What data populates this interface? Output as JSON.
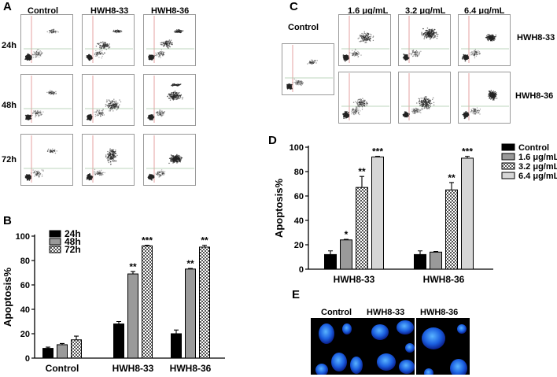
{
  "panels": {
    "A": {
      "label": "A",
      "columns": [
        "Control",
        "HWH8-33",
        "HWH8-36"
      ],
      "rows": [
        "24h",
        "48h",
        "72h"
      ]
    },
    "B": {
      "label": "B"
    },
    "C": {
      "label": "C",
      "control_label": "Control",
      "columns": [
        "1.6 μg/mL",
        "3.2 μg/mL",
        "6.4 μg/mL"
      ],
      "rows": [
        "HWH8-33",
        "HWH8-36"
      ]
    },
    "D": {
      "label": "D"
    },
    "E": {
      "label": "E",
      "columns": [
        "Control",
        "HWH8-33",
        "HWH8-36"
      ]
    }
  },
  "chart_data": [
    {
      "id": "B",
      "type": "bar",
      "ylabel": "Apoptosis%",
      "ylim": [
        0,
        100
      ],
      "yticks": [
        0,
        20,
        40,
        60,
        80,
        100
      ],
      "categories": [
        "Control",
        "HWH8-33",
        "HWH8-36"
      ],
      "legend_position": "top-left",
      "series": [
        {
          "name": "24h",
          "values": [
            8,
            28,
            20
          ],
          "errors": [
            1,
            2,
            3
          ],
          "significance": [
            "",
            "",
            ""
          ]
        },
        {
          "name": "48h",
          "values": [
            11,
            69,
            73
          ],
          "errors": [
            1,
            2,
            0.5
          ],
          "significance": [
            "",
            "**",
            "**"
          ]
        },
        {
          "name": "72h",
          "values": [
            15,
            92,
            91
          ],
          "errors": [
            3,
            0.5,
            1.5
          ],
          "significance": [
            "",
            "***",
            "**"
          ]
        }
      ]
    },
    {
      "id": "D",
      "type": "bar",
      "ylabel": "Apoptosis%",
      "ylim": [
        0,
        100
      ],
      "yticks": [
        0,
        20,
        40,
        60,
        80,
        100
      ],
      "categories": [
        "HWH8-33",
        "HWH8-36"
      ],
      "legend_position": "right",
      "series": [
        {
          "name": "Control",
          "values": [
            12,
            12
          ],
          "errors": [
            3,
            3
          ],
          "significance": [
            "",
            ""
          ]
        },
        {
          "name": "1.6 μg/mL",
          "values": [
            24,
            14
          ],
          "errors": [
            0.5,
            0.5
          ],
          "significance": [
            "*",
            ""
          ]
        },
        {
          "name": "3.2 μg/mL",
          "values": [
            67,
            65
          ],
          "errors": [
            9,
            6
          ],
          "significance": [
            "**",
            "**"
          ]
        },
        {
          "name": "6.4 μg/mL",
          "values": [
            92,
            91
          ],
          "errors": [
            0.5,
            1.5
          ],
          "significance": [
            "***",
            "***"
          ]
        }
      ]
    }
  ]
}
